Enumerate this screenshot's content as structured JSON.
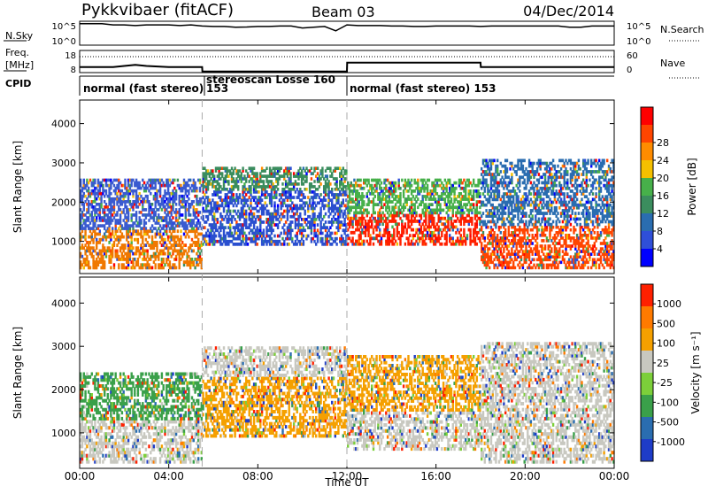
{
  "header": {
    "station": "Pykkvibaer (fitACF)",
    "beam": "Beam 03",
    "date": "04/Dec/2014"
  },
  "left_labels": {
    "nsky": "N.Sky",
    "freq": "Freq.",
    "freq_unit": "[MHz]",
    "cpid": "CPID"
  },
  "right_labels": {
    "nsearch": "N.Search",
    "nave": "Nave"
  },
  "cpid_segments": [
    {
      "label": "normal (fast stereo)",
      "start_hour": 0,
      "end_hour": 5.5
    },
    {
      "label": "153",
      "start_hour": 5.5,
      "end_hour": 5.5
    },
    {
      "label": "stereoscan Losse 160",
      "start_hour": 5.5,
      "end_hour": 12
    },
    {
      "label": "normal (fast stereo) 153",
      "start_hour": 12,
      "end_hour": 24
    }
  ],
  "chart_data": [
    {
      "type": "line",
      "name": "noise",
      "x_unit": "hours UT",
      "left_ticks": [
        "10^5",
        "10^0"
      ],
      "right_ticks": [
        "10^5",
        "10^0"
      ],
      "x": [
        0,
        0.5,
        1,
        1.5,
        2,
        2.5,
        3,
        3.5,
        4,
        4.5,
        5,
        5.5,
        6,
        6.5,
        7,
        7.5,
        8,
        8.5,
        9,
        9.5,
        10,
        10.5,
        11,
        11.5,
        12,
        12.5,
        13,
        13.5,
        14,
        14.5,
        15,
        15.5,
        16,
        16.5,
        17,
        17.5,
        18,
        18.5,
        19,
        19.5,
        20,
        20.5,
        21,
        21.5,
        22,
        22.5,
        23,
        23.5,
        24
      ],
      "nsky": [
        0.9,
        0.9,
        0.9,
        0.85,
        0.85,
        0.82,
        0.85,
        0.85,
        0.85,
        0.82,
        0.85,
        0.8,
        0.78,
        0.78,
        0.75,
        0.76,
        0.78,
        0.78,
        0.8,
        0.8,
        0.72,
        0.75,
        0.78,
        0.6,
        0.85,
        0.82,
        0.82,
        0.82,
        0.8,
        0.8,
        0.78,
        0.78,
        0.8,
        0.8,
        0.8,
        0.8,
        0.78,
        0.8,
        0.8,
        0.8,
        0.8,
        0.8,
        0.8,
        0.8,
        0.75,
        0.75,
        0.8,
        0.8,
        0.8
      ]
    },
    {
      "type": "line",
      "name": "frequency",
      "left_ticks": [
        "18",
        "8"
      ],
      "right_ticks": [
        "60",
        "0"
      ],
      "x": [
        0,
        1.5,
        2,
        2.5,
        3,
        4,
        5.5,
        5.51,
        12,
        12.01,
        18,
        18.01,
        24
      ],
      "freq_mhz": [
        10.5,
        10.5,
        11,
        11.5,
        11,
        10.5,
        10.5,
        8.5,
        8.5,
        12.5,
        12.5,
        10.5,
        10.5
      ]
    },
    {
      "type": "heatmap",
      "name": "power",
      "ylabel": "Slant Range [km]",
      "yticks": [
        1000,
        2000,
        3000,
        4000
      ],
      "ylim": [
        180,
        4600
      ],
      "xlim": [
        0,
        24
      ],
      "colorbar_label": "Power [dB]",
      "colorbar_ticks": [
        "4",
        "8",
        "12",
        "16",
        "20",
        "24",
        "28"
      ],
      "colorbar_colors": [
        "#0000ff",
        "#2f4fd8",
        "#2a6db0",
        "#3b8d5e",
        "#47b04a",
        "#f5c000",
        "#ff8c00",
        "#ff4500",
        "#ff0000"
      ],
      "bands": [
        {
          "t0": 0,
          "t1": 5.5,
          "r0": 300,
          "r1": 1300,
          "color": "#f07800"
        },
        {
          "t0": 0,
          "t1": 5.5,
          "r0": 1300,
          "r1": 2600,
          "color": "#3a5bd0"
        },
        {
          "t0": 5.5,
          "t1": 12,
          "r0": 900,
          "r1": 2300,
          "color": "#2a4fcf"
        },
        {
          "t0": 5.5,
          "t1": 12,
          "r0": 2300,
          "r1": 2900,
          "color": "#3b8d5e"
        },
        {
          "t0": 12,
          "t1": 18,
          "r0": 900,
          "r1": 1700,
          "color": "#ff2000"
        },
        {
          "t0": 12,
          "t1": 18,
          "r0": 1700,
          "r1": 2600,
          "color": "#47b04a"
        },
        {
          "t0": 18,
          "t1": 24,
          "r0": 300,
          "r1": 1400,
          "color": "#ff4500"
        },
        {
          "t0": 18,
          "t1": 24,
          "r0": 1400,
          "r1": 3100,
          "color": "#2a6db0"
        }
      ]
    },
    {
      "type": "heatmap",
      "name": "velocity",
      "xlabel": "Time UT",
      "ylabel": "Slant Range [km]",
      "yticks": [
        1000,
        2000,
        3000,
        4000
      ],
      "ylim": [
        180,
        4600
      ],
      "xlim": [
        0,
        24
      ],
      "xticks": [
        "00:00",
        "04:00",
        "08:00",
        "12:00",
        "16:00",
        "20:00",
        "00:00"
      ],
      "colorbar_label": "Velocity [m s⁻¹]",
      "colorbar_ticks": [
        "1000",
        "500",
        "100",
        "25",
        "-25",
        "-100",
        "-500",
        "-1000"
      ],
      "colorbar_colors": [
        "#1e3cc8",
        "#2a6db0",
        "#3aa04a",
        "#7ccf3a",
        "#c8c8c0",
        "#f5a000",
        "#ff7a00",
        "#ff2000"
      ],
      "bands": [
        {
          "t0": 0,
          "t1": 5.5,
          "r0": 300,
          "r1": 1300,
          "color": "#c8c8c0"
        },
        {
          "t0": 0,
          "t1": 5.5,
          "r0": 1300,
          "r1": 2400,
          "color": "#3aa04a"
        },
        {
          "t0": 5.5,
          "t1": 12,
          "r0": 900,
          "r1": 2300,
          "color": "#f5a000"
        },
        {
          "t0": 5.5,
          "t1": 12,
          "r0": 2300,
          "r1": 3000,
          "color": "#c8c8c0"
        },
        {
          "t0": 12,
          "t1": 18,
          "r0": 600,
          "r1": 1500,
          "color": "#c8c8c0"
        },
        {
          "t0": 12,
          "t1": 18,
          "r0": 1500,
          "r1": 2800,
          "color": "#f5a000"
        },
        {
          "t0": 18,
          "t1": 24,
          "r0": 300,
          "r1": 1300,
          "color": "#c8c8c0"
        },
        {
          "t0": 18,
          "t1": 24,
          "r0": 1300,
          "r1": 3100,
          "color": "#c8c8c0"
        }
      ]
    }
  ]
}
